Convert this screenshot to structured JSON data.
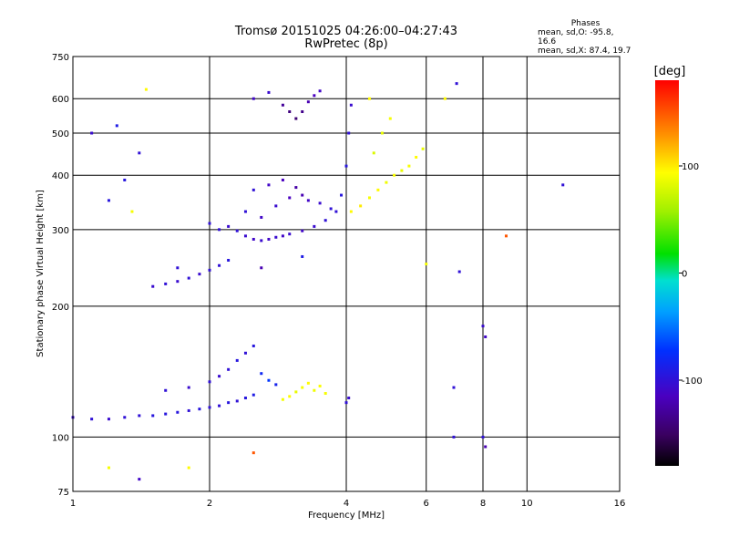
{
  "title_line1": "Tromsø 20151025 04:26:00–04:27:43",
  "title_line2": "RwPretec (8p)",
  "stats": {
    "header": "Phases",
    "line1": "mean, sd,O: -95.8, 16.6",
    "line2": "mean, sd,X:  87.4, 19.7"
  },
  "colorbar": {
    "unit": "[deg]",
    "ticks": [
      {
        "value": 100,
        "label": "100"
      },
      {
        "value": 0,
        "label": "0"
      },
      {
        "value": -100,
        "label": "-100"
      }
    ],
    "range": [
      -180,
      180
    ]
  },
  "chart_data": {
    "type": "scatter",
    "xlabel": "Frequency [MHz]",
    "ylabel": "Stationary phase Virtual Height [km]",
    "xscale": "log2",
    "yscale": "log",
    "xlim": [
      1,
      16
    ],
    "ylim": [
      75,
      750
    ],
    "xticks": [
      {
        "value": 1,
        "label": "1"
      },
      {
        "value": 2,
        "label": "2"
      },
      {
        "value": 4,
        "label": "4"
      },
      {
        "value": 6,
        "label": "6"
      },
      {
        "value": 8,
        "label": "8"
      },
      {
        "value": 10,
        "label": "10"
      },
      {
        "value": 16,
        "label": "16"
      }
    ],
    "yticks": [
      {
        "value": 75,
        "label": "75"
      },
      {
        "value": 100,
        "label": "100"
      },
      {
        "value": 200,
        "label": "200"
      },
      {
        "value": 300,
        "label": "300"
      },
      {
        "value": 400,
        "label": "400"
      },
      {
        "value": 500,
        "label": "500"
      },
      {
        "value": 600,
        "label": "600"
      },
      {
        "value": 750,
        "label": "750"
      }
    ],
    "grid": true,
    "clusters": [
      {
        "name": "E-trace-low",
        "points": [
          [
            1.0,
            111,
            -105
          ],
          [
            1.1,
            110,
            -100
          ],
          [
            1.2,
            110,
            -105
          ],
          [
            1.3,
            111,
            -100
          ],
          [
            1.4,
            112,
            -100
          ],
          [
            1.5,
            112,
            -95
          ],
          [
            1.6,
            113,
            -95
          ],
          [
            1.7,
            114,
            -95
          ],
          [
            1.8,
            115,
            -100
          ],
          [
            1.9,
            116,
            -95
          ],
          [
            2.0,
            117,
            -100
          ],
          [
            2.1,
            118,
            -100
          ],
          [
            2.2,
            120,
            -95
          ],
          [
            2.3,
            121,
            -100
          ],
          [
            2.4,
            123,
            -95
          ],
          [
            2.5,
            125,
            -90
          ]
        ]
      },
      {
        "name": "E-trace-upper",
        "points": [
          [
            1.6,
            128,
            -100
          ],
          [
            1.8,
            130,
            -105
          ],
          [
            2.0,
            134,
            -100
          ],
          [
            2.1,
            138,
            -105
          ],
          [
            2.2,
            143,
            -100
          ],
          [
            2.3,
            150,
            -95
          ],
          [
            2.4,
            156,
            -100
          ],
          [
            2.5,
            162,
            -95
          ],
          [
            2.6,
            140,
            -80
          ],
          [
            2.7,
            135,
            -70
          ],
          [
            2.8,
            132,
            -85
          ]
        ]
      },
      {
        "name": "E-X-mode",
        "points": [
          [
            2.9,
            122,
            90
          ],
          [
            3.0,
            124,
            95
          ],
          [
            3.1,
            127,
            85
          ],
          [
            3.2,
            130,
            90
          ],
          [
            3.3,
            133,
            95
          ],
          [
            3.4,
            128,
            88
          ],
          [
            3.5,
            131,
            92
          ],
          [
            3.6,
            126,
            90
          ]
        ]
      },
      {
        "name": "F1-low",
        "points": [
          [
            1.5,
            222,
            -105
          ],
          [
            1.6,
            225,
            -100
          ],
          [
            1.7,
            228,
            -105
          ],
          [
            1.8,
            232,
            -100
          ],
          [
            1.9,
            237,
            -105
          ],
          [
            2.0,
            242,
            -100
          ],
          [
            2.1,
            248,
            -100
          ],
          [
            2.2,
            255,
            -95
          ]
        ]
      },
      {
        "name": "F-trace-O",
        "points": [
          [
            2.0,
            310,
            -100
          ],
          [
            2.1,
            300,
            -100
          ],
          [
            2.2,
            305,
            -105
          ],
          [
            2.3,
            298,
            -100
          ],
          [
            2.4,
            290,
            -105
          ],
          [
            2.5,
            285,
            -110
          ],
          [
            2.6,
            283,
            -105
          ],
          [
            2.7,
            285,
            -110
          ],
          [
            2.8,
            288,
            -105
          ],
          [
            2.9,
            290,
            -110
          ],
          [
            3.0,
            293,
            -105
          ],
          [
            3.2,
            298,
            -110
          ],
          [
            3.4,
            305,
            -105
          ],
          [
            3.6,
            315,
            -100
          ],
          [
            3.8,
            330,
            -100
          ],
          [
            3.9,
            360,
            -95
          ],
          [
            4.0,
            420,
            -95
          ],
          [
            4.05,
            500,
            -100
          ],
          [
            4.1,
            580,
            -105
          ]
        ]
      },
      {
        "name": "F-ridges",
        "points": [
          [
            2.4,
            330,
            -100
          ],
          [
            2.6,
            320,
            -110
          ],
          [
            2.8,
            340,
            -105
          ],
          [
            3.0,
            355,
            -115
          ],
          [
            3.2,
            360,
            -120
          ],
          [
            2.5,
            370,
            -100
          ],
          [
            2.7,
            380,
            -110
          ],
          [
            2.9,
            390,
            -115
          ],
          [
            3.1,
            375,
            -125
          ],
          [
            3.3,
            350,
            -110
          ],
          [
            3.5,
            345,
            -105
          ],
          [
            3.7,
            335,
            -100
          ]
        ]
      },
      {
        "name": "F-X-mode",
        "points": [
          [
            4.1,
            330,
            95
          ],
          [
            4.3,
            340,
            100
          ],
          [
            4.5,
            355,
            90
          ],
          [
            4.7,
            370,
            95
          ],
          [
            4.9,
            385,
            88
          ],
          [
            5.1,
            400,
            92
          ],
          [
            5.3,
            410,
            85
          ],
          [
            5.5,
            420,
            90
          ],
          [
            5.7,
            440,
            95
          ],
          [
            5.9,
            460,
            85
          ],
          [
            4.6,
            450,
            80
          ],
          [
            4.8,
            500,
            85
          ],
          [
            5.0,
            540,
            90
          ],
          [
            4.5,
            600,
            95
          ]
        ]
      },
      {
        "name": "F2-upper-O",
        "points": [
          [
            2.5,
            600,
            -110
          ],
          [
            2.7,
            620,
            -105
          ],
          [
            2.9,
            580,
            -130
          ],
          [
            3.0,
            560,
            -140
          ],
          [
            3.1,
            540,
            -145
          ],
          [
            3.2,
            560,
            -135
          ],
          [
            3.3,
            590,
            -120
          ],
          [
            3.4,
            610,
            -115
          ],
          [
            3.5,
            625,
            -110
          ]
        ]
      },
      {
        "name": "Scattered",
        "points": [
          [
            1.45,
            630,
            95
          ],
          [
            1.25,
            520,
            -90
          ],
          [
            1.4,
            450,
            -100
          ],
          [
            1.3,
            390,
            -95
          ],
          [
            1.2,
            350,
            -95
          ],
          [
            1.35,
            330,
            90
          ],
          [
            1.1,
            500,
            -105
          ],
          [
            1.7,
            245,
            -100
          ],
          [
            2.6,
            245,
            -120
          ],
          [
            3.2,
            260,
            -90
          ],
          [
            4.0,
            120,
            -100
          ],
          [
            4.05,
            123,
            -105
          ],
          [
            6.0,
            250,
            90
          ],
          [
            7.1,
            240,
            -100
          ],
          [
            7.0,
            650,
            -100
          ],
          [
            6.6,
            600,
            95
          ],
          [
            9.0,
            290,
            150
          ],
          [
            12.0,
            380,
            -100
          ],
          [
            8.0,
            180,
            -105
          ],
          [
            8.1,
            170,
            -110
          ],
          [
            8.0,
            100,
            -100
          ],
          [
            8.1,
            95,
            -120
          ],
          [
            6.9,
            100,
            -100
          ],
          [
            6.9,
            130,
            -100
          ],
          [
            1.8,
            85,
            95
          ],
          [
            1.4,
            80,
            -110
          ],
          [
            1.2,
            85,
            90
          ],
          [
            2.5,
            92,
            150
          ]
        ]
      }
    ]
  }
}
